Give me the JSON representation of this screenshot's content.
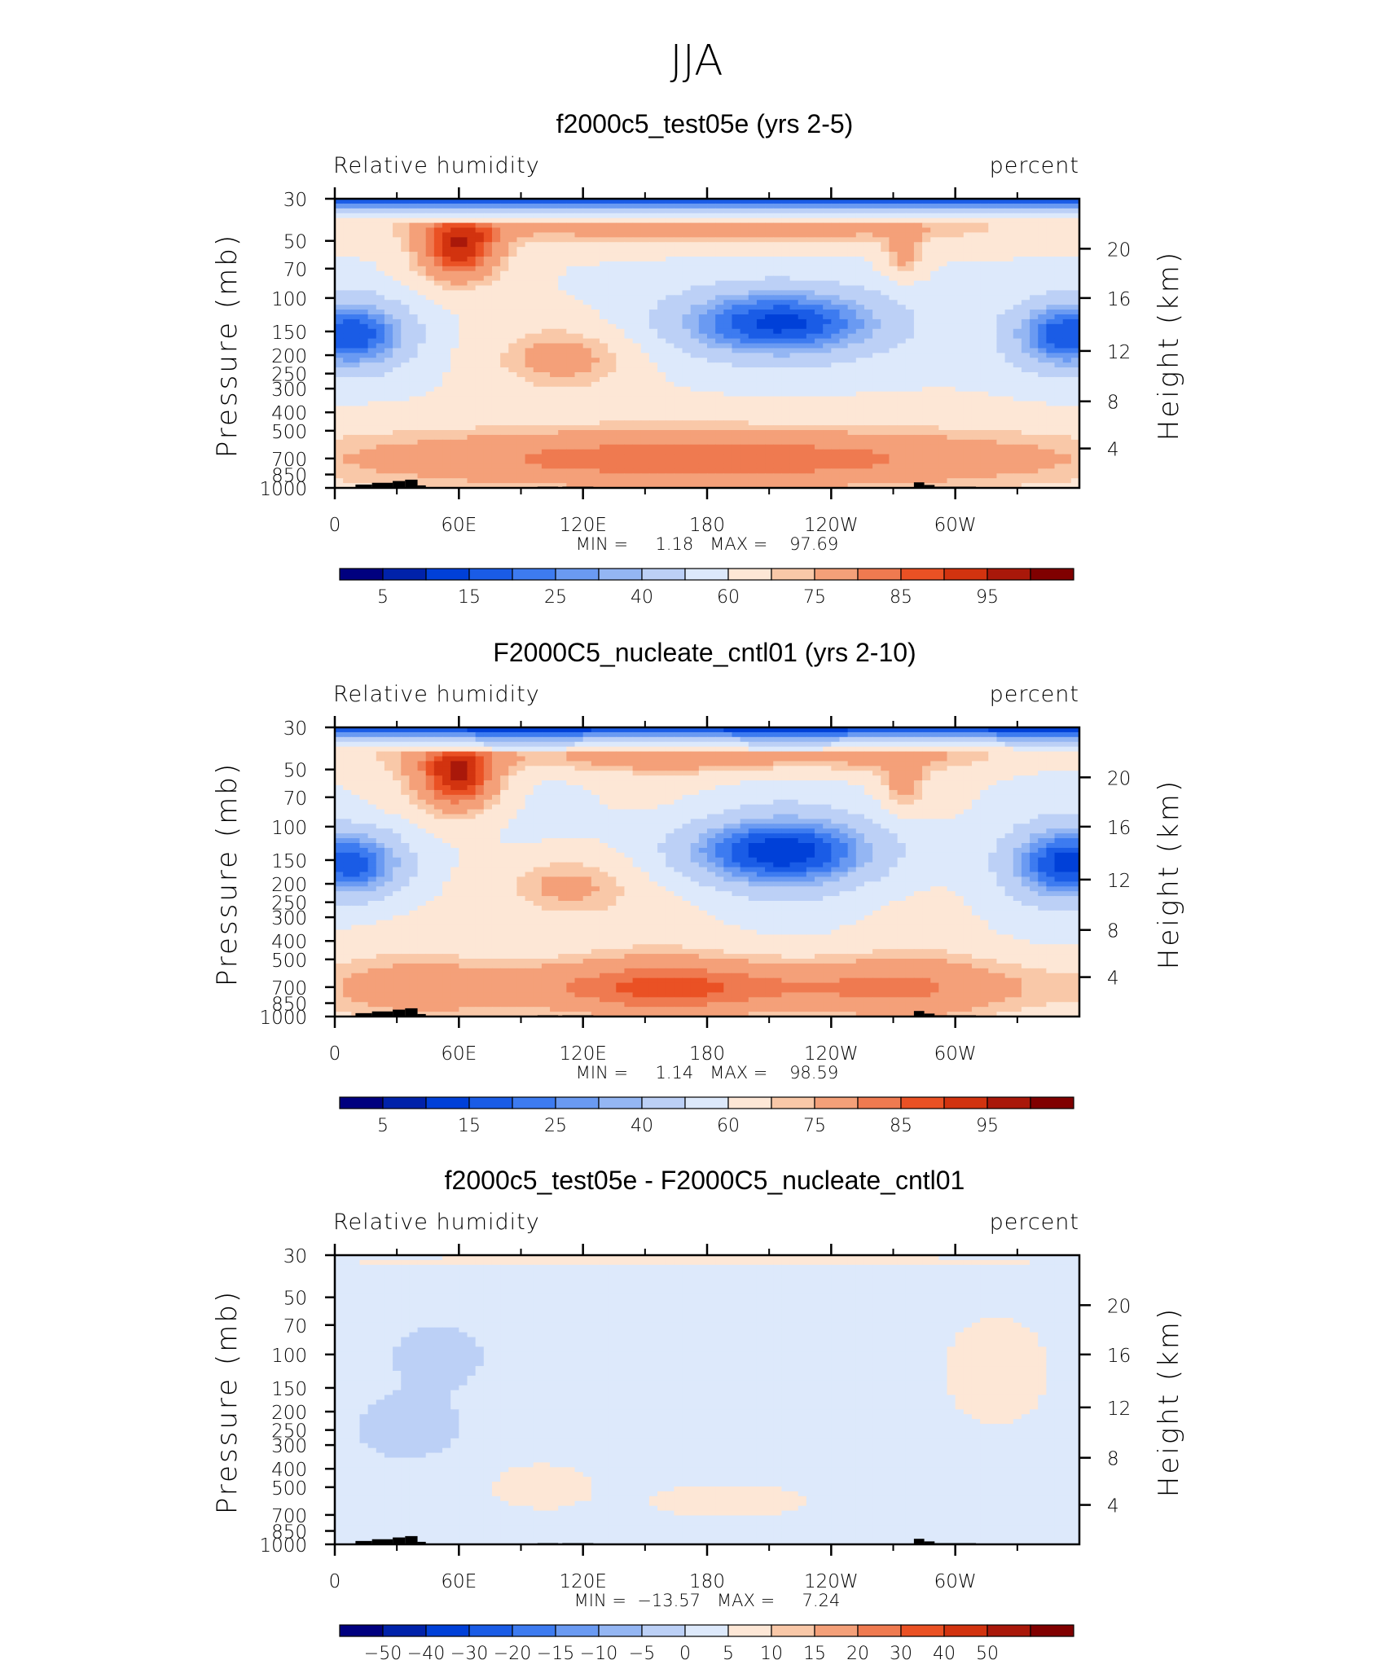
{
  "figure_title": "JJA",
  "chart_data": [
    {
      "type": "heatmap",
      "title": "f2000c5_test05e (yrs 2-5)",
      "left_label": "Relative humidity",
      "right_label": "percent",
      "ylabel": "Pressure (mb)",
      "ylabel_right": "Height (km)",
      "x_ticks": [
        "0",
        "60E",
        "120E",
        "180",
        "120W",
        "60W"
      ],
      "x_tick_values": [
        0,
        60,
        120,
        180,
        240,
        300
      ],
      "xlim": [
        0,
        360
      ],
      "p_ticks": [
        "30",
        "50",
        "70",
        "100",
        "150",
        "200",
        "250",
        "300",
        "400",
        "500",
        "700",
        "850",
        "1000"
      ],
      "p_tick_values": [
        30,
        50,
        70,
        100,
        150,
        200,
        250,
        300,
        400,
        500,
        700,
        850,
        1000
      ],
      "plim": [
        1000,
        30
      ],
      "z_ticks": [
        "20",
        "16",
        "12",
        "8",
        "4"
      ],
      "z_tick_values": [
        20,
        16,
        12,
        8,
        4
      ],
      "stats_text": "MIN =     1.18   MAX =    97.69",
      "min": 1.18,
      "max": 97.69,
      "levels": [
        5,
        10,
        15,
        20,
        25,
        30,
        40,
        50,
        60,
        65,
        75,
        80,
        85,
        90,
        95
      ],
      "colorbar_labels": [
        "5",
        "15",
        "25",
        "40",
        "60",
        "75",
        "85",
        "95"
      ],
      "colorbar_label_slots": [
        0,
        2,
        4,
        6,
        8,
        10,
        12,
        14
      ]
    },
    {
      "type": "heatmap",
      "title": "F2000C5_nucleate_cntl01 (yrs 2-10)",
      "left_label": "Relative humidity",
      "right_label": "percent",
      "ylabel": "Pressure (mb)",
      "ylabel_right": "Height (km)",
      "x_ticks": [
        "0",
        "60E",
        "120E",
        "180",
        "120W",
        "60W"
      ],
      "x_tick_values": [
        0,
        60,
        120,
        180,
        240,
        300
      ],
      "xlim": [
        0,
        360
      ],
      "p_ticks": [
        "30",
        "50",
        "70",
        "100",
        "150",
        "200",
        "250",
        "300",
        "400",
        "500",
        "700",
        "850",
        "1000"
      ],
      "p_tick_values": [
        30,
        50,
        70,
        100,
        150,
        200,
        250,
        300,
        400,
        500,
        700,
        850,
        1000
      ],
      "plim": [
        1000,
        30
      ],
      "z_ticks": [
        "20",
        "16",
        "12",
        "8",
        "4"
      ],
      "z_tick_values": [
        20,
        16,
        12,
        8,
        4
      ],
      "stats_text": "MIN =     1.14   MAX =    98.59",
      "min": 1.14,
      "max": 98.59,
      "levels": [
        5,
        10,
        15,
        20,
        25,
        30,
        40,
        50,
        60,
        65,
        75,
        80,
        85,
        90,
        95
      ],
      "colorbar_labels": [
        "5",
        "15",
        "25",
        "40",
        "60",
        "75",
        "85",
        "95"
      ],
      "colorbar_label_slots": [
        0,
        2,
        4,
        6,
        8,
        10,
        12,
        14
      ]
    },
    {
      "type": "heatmap",
      "title": "f2000c5_test05e - F2000C5_nucleate_cntl01",
      "left_label": "Relative humidity",
      "right_label": "percent",
      "ylabel": "Pressure (mb)",
      "ylabel_right": "Height (km)",
      "x_ticks": [
        "0",
        "60E",
        "120E",
        "180",
        "120W",
        "60W"
      ],
      "x_tick_values": [
        0,
        60,
        120,
        180,
        240,
        300
      ],
      "xlim": [
        0,
        360
      ],
      "p_ticks": [
        "30",
        "50",
        "70",
        "100",
        "150",
        "200",
        "250",
        "300",
        "400",
        "500",
        "700",
        "850",
        "1000"
      ],
      "p_tick_values": [
        30,
        50,
        70,
        100,
        150,
        200,
        250,
        300,
        400,
        500,
        700,
        850,
        1000
      ],
      "plim": [
        1000,
        30
      ],
      "z_ticks": [
        "20",
        "16",
        "12",
        "8",
        "4"
      ],
      "z_tick_values": [
        20,
        16,
        12,
        8,
        4
      ],
      "stats_text": "MIN =  −13.57   MAX =     7.24",
      "min": -13.57,
      "max": 7.24,
      "levels": [
        -50,
        -40,
        -30,
        -20,
        -15,
        -10,
        -5,
        0,
        5,
        10,
        15,
        20,
        30,
        40,
        50
      ],
      "colorbar_labels": [
        "−50",
        "−40",
        "−30",
        "−20",
        "−15",
        "−10",
        "−5",
        "0",
        "5",
        "10",
        "15",
        "20",
        "30",
        "40",
        "50"
      ],
      "colorbar_label_slots": [
        0,
        1,
        2,
        3,
        4,
        5,
        6,
        7,
        8,
        9,
        10,
        11,
        12,
        13,
        14
      ]
    }
  ],
  "colormap": [
    "#00007f",
    "#0022aa",
    "#0040d8",
    "#1a5ce6",
    "#3d7bf0",
    "#6a9af2",
    "#94b6f3",
    "#bcd0f6",
    "#dde9fb",
    "#fde7d6",
    "#f9c8a8",
    "#f4a079",
    "#ef7a50",
    "#ea5124",
    "#d2330f",
    "#a9180a",
    "#800000"
  ]
}
